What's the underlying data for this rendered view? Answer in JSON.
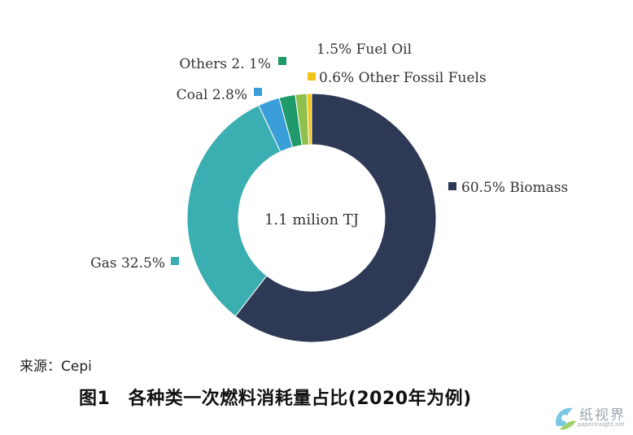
{
  "chart_data": {
    "type": "pie",
    "donut": true,
    "center_label": "1.1 milion TJ",
    "slices": [
      {
        "name": "Biomass",
        "value": 60.5,
        "label": "60.5%  Biomass",
        "color": "#2e3a55"
      },
      {
        "name": "Gas",
        "value": 32.5,
        "label": "Gas  32.5%",
        "color": "#3aaeb0"
      },
      {
        "name": "Coal",
        "value": 2.8,
        "label": "Coal  2.8%",
        "color": "#3a9fd8"
      },
      {
        "name": "Others",
        "value": 2.1,
        "label": "Others 2. 1%",
        "color": "#1f9a6a"
      },
      {
        "name": "Fuel Oil",
        "value": 1.5,
        "label": "1.5% Fuel Oil",
        "color": "#8fbf4c"
      },
      {
        "name": "Other Fossil Fuels",
        "value": 0.6,
        "label": "0.6% Other Fossil Fuels",
        "color": "#f2c418"
      }
    ]
  },
  "source_text": "来源：Cepi",
  "caption": "图1　各种类一次燃料消耗量占比(2020年为例)",
  "watermark": {
    "text": "纸视界",
    "url": "paperinsight.net"
  }
}
